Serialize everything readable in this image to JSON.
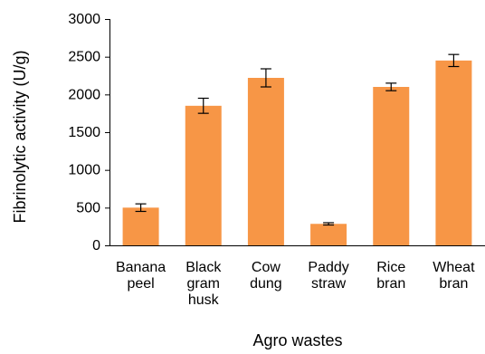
{
  "chart_data": {
    "type": "bar",
    "title": "",
    "xlabel": "Agro wastes",
    "ylabel": "Fibrinolytic activity (U/g)",
    "ylim": [
      0,
      3000
    ],
    "yticks": [
      "0",
      "500",
      "1000",
      "1500",
      "2000",
      "2500",
      "3000"
    ],
    "grid": false,
    "bar_color": "#F79646",
    "categories": [
      [
        "Banana",
        "peel"
      ],
      [
        "Black",
        "gram",
        "husk"
      ],
      [
        "Cow",
        "dung"
      ],
      [
        "Paddy",
        "straw"
      ],
      [
        "Rice",
        "bran"
      ],
      [
        "Wheat",
        "bran"
      ]
    ],
    "values": [
      500,
      1850,
      2220,
      285,
      2100,
      2450
    ],
    "error": [
      50,
      100,
      120,
      15,
      50,
      80
    ]
  }
}
